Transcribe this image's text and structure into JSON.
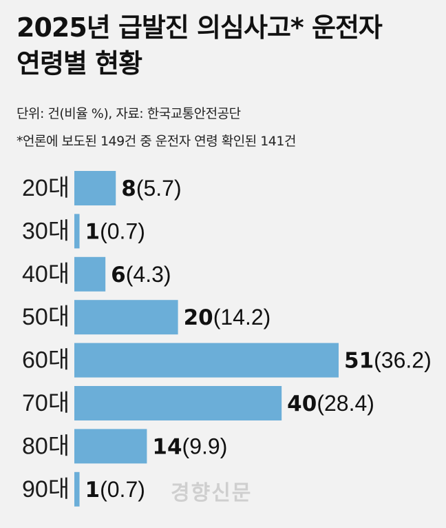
{
  "title_line1": "2025년 급발진 의심사고* 운전자",
  "title_line2": "연령별 현황",
  "unit_source": "단위: 건(비율 %), 자료: 한국교통안전공단",
  "footnote": "*언론에 보도된 149건 중 운전자 연령 확인된 141건",
  "watermark": "경향신문",
  "colors": {
    "bar": "#6baed8",
    "background": "#f2f2f2"
  },
  "chart_data": {
    "type": "bar",
    "orientation": "horizontal",
    "title": "2025년 급발진 의심사고* 운전자 연령별 현황",
    "categories": [
      "20대",
      "30대",
      "40대",
      "50대",
      "60대",
      "70대",
      "80대",
      "90대"
    ],
    "values": [
      8,
      1,
      6,
      20,
      51,
      40,
      14,
      1
    ],
    "percentages": [
      "5.7",
      "0.7",
      "4.3",
      "14.2",
      "36.2",
      "28.4",
      "9.9",
      "0.7"
    ],
    "xlim": [
      0,
      51
    ],
    "grid": false,
    "legend": "none"
  }
}
